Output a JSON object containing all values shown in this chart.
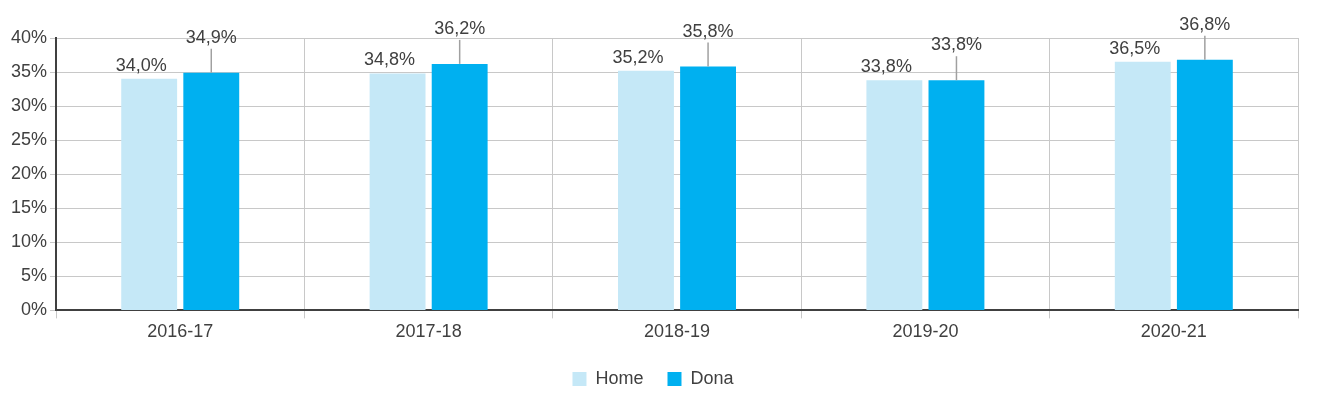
{
  "chart_data": {
    "type": "bar",
    "categories": [
      "2016-17",
      "2017-18",
      "2018-19",
      "2019-20",
      "2020-21"
    ],
    "series": [
      {
        "name": "Home",
        "color": "#c5e8f7",
        "values": [
          34.0,
          34.8,
          35.2,
          33.8,
          36.5
        ],
        "value_labels": [
          "34,0%",
          "34,8%",
          "35,2%",
          "33,8%",
          "36,5%"
        ]
      },
      {
        "name": "Dona",
        "color": "#00b0f0",
        "values": [
          34.9,
          36.2,
          35.8,
          33.8,
          36.8
        ],
        "value_labels": [
          "34,9%",
          "36,2%",
          "35,8%",
          "33,8%",
          "36,8%"
        ]
      }
    ],
    "ylim": [
      0,
      40
    ],
    "yticks": [
      {
        "value": 0,
        "label": "0%"
      },
      {
        "value": 5,
        "label": "5%"
      },
      {
        "value": 10,
        "label": "10%"
      },
      {
        "value": 15,
        "label": "15%"
      },
      {
        "value": 20,
        "label": "20%"
      },
      {
        "value": 25,
        "label": "25%"
      },
      {
        "value": 30,
        "label": "30%"
      },
      {
        "value": 35,
        "label": "35%"
      },
      {
        "value": 40,
        "label": "40%"
      }
    ],
    "grid": true,
    "legend": "bottom"
  }
}
